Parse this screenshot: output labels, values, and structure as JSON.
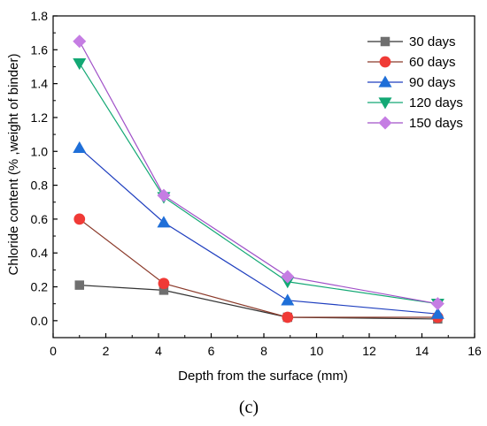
{
  "caption": "(c)",
  "chart_data": {
    "type": "line",
    "xlabel": "Depth from the surface (mm)",
    "ylabel": "Chloride content (% ,weight of binder)",
    "xlim": [
      0,
      16
    ],
    "ylim": [
      -0.1,
      1.8
    ],
    "xticks": [
      0,
      2,
      4,
      6,
      8,
      10,
      12,
      14,
      16
    ],
    "yticks": [
      0.0,
      0.2,
      0.4,
      0.6,
      0.8,
      1.0,
      1.2,
      1.4,
      1.6,
      1.8
    ],
    "xtick_labels": [
      "0",
      "2",
      "4",
      "6",
      "8",
      "10",
      "12",
      "14",
      "16"
    ],
    "ytick_labels": [
      "0.0",
      "0.2",
      "0.4",
      "0.6",
      "0.8",
      "1.0",
      "1.2",
      "1.4",
      "1.6",
      "1.8"
    ],
    "grid": false,
    "legend_position": "top-right",
    "x": [
      1.0,
      4.2,
      8.9,
      14.6
    ],
    "series": [
      {
        "name": "30 days",
        "marker": "square",
        "color": "#6f6f6f",
        "line_color": "#333333",
        "values": [
          0.21,
          0.18,
          0.02,
          0.01
        ]
      },
      {
        "name": "60 days",
        "marker": "circle",
        "color": "#f03a36",
        "line_color": "#8b3a2a",
        "values": [
          0.6,
          0.22,
          0.02,
          0.02
        ]
      },
      {
        "name": "90 days",
        "marker": "triangle-up",
        "color": "#1f6fd8",
        "line_color": "#1f3fbf",
        "values": [
          1.02,
          0.58,
          0.12,
          0.04
        ]
      },
      {
        "name": "120 days",
        "marker": "triangle-down",
        "color": "#13a874",
        "line_color": "#13a874",
        "values": [
          1.52,
          0.73,
          0.23,
          0.1
        ]
      },
      {
        "name": "150 days",
        "marker": "diamond",
        "color": "#c57de3",
        "line_color": "#a050c8",
        "values": [
          1.65,
          0.74,
          0.26,
          0.1
        ]
      }
    ]
  }
}
